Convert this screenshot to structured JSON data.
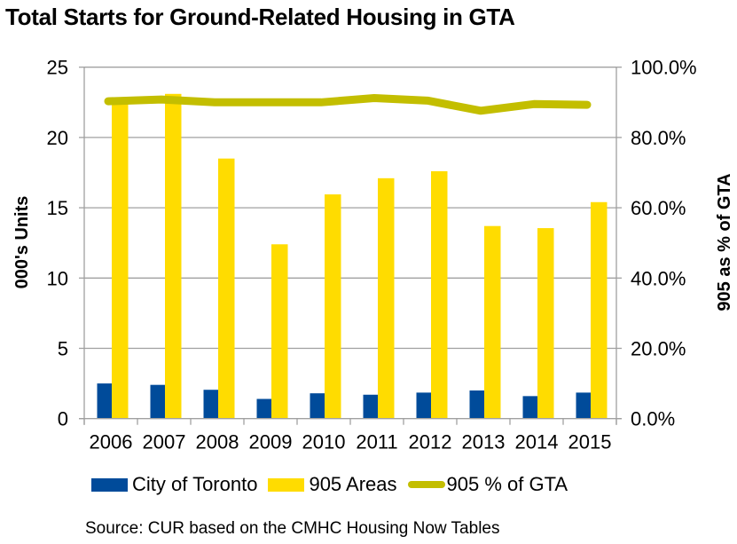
{
  "chart_data": {
    "type": "bar",
    "title": "Total Starts for Ground-Related Housing in GTA",
    "categories": [
      "2006",
      "2007",
      "2008",
      "2009",
      "2010",
      "2011",
      "2012",
      "2013",
      "2014",
      "2015"
    ],
    "series": [
      {
        "name": "City of Toronto",
        "type": "bar",
        "axis": "left",
        "color": "#004b9a",
        "values": [
          2.5,
          2.4,
          2.05,
          1.4,
          1.8,
          1.7,
          1.85,
          2.0,
          1.6,
          1.85
        ]
      },
      {
        "name": "905 Areas",
        "type": "bar",
        "axis": "left",
        "color": "#ffdc00",
        "values": [
          22.6,
          23.1,
          18.5,
          12.4,
          15.95,
          17.1,
          17.6,
          13.7,
          13.55,
          15.4
        ]
      },
      {
        "name": "905 % of GTA",
        "type": "line",
        "axis": "right",
        "color": "#c3be00",
        "values": [
          90.3,
          90.8,
          90.0,
          90.0,
          90.0,
          91.2,
          90.5,
          87.6,
          89.5,
          89.3
        ]
      }
    ],
    "ylabel": "000's Units",
    "ylim": [
      0,
      25
    ],
    "yticks": [
      "0",
      "5",
      "10",
      "15",
      "20",
      "25"
    ],
    "ylabel_right": "905 as % of GTA",
    "ylim_right": [
      0,
      100
    ],
    "yticks_right": [
      "0.0%",
      "20.0%",
      "40.0%",
      "60.0%",
      "80.0%",
      "100.0%"
    ],
    "grid": true,
    "legend_position": "bottom",
    "source": "Source: CUR based on the CMHC Housing Now Tables"
  }
}
